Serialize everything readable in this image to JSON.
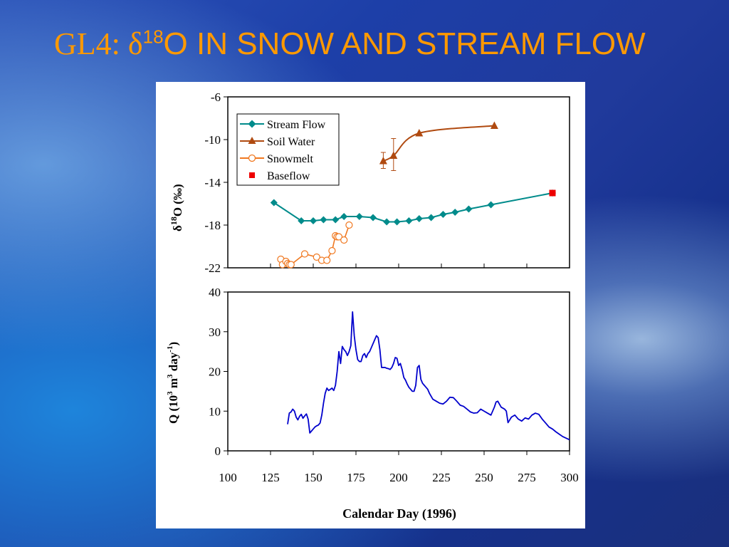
{
  "slide": {
    "title_prefix": "GL4: δ",
    "title_sup": "18",
    "title_suffix": "O IN SNOW AND STREAM FLOW"
  },
  "colors": {
    "title": "#ff9900",
    "stream_flow": "#008b8b",
    "soil_water": "#b04a10",
    "snowmelt": "#f07820",
    "baseflow": "#ee0000",
    "discharge": "#0000cc"
  },
  "chart_data": [
    {
      "type": "scatter",
      "ylabel_delta": "δ",
      "ylabel_sup": "18",
      "ylabel_rest": "O (‰)",
      "xlim": [
        100,
        300
      ],
      "ylim": [
        -22,
        -6
      ],
      "y_ticks": [
        "-6",
        "-10",
        "-14",
        "-18",
        "-22"
      ],
      "legend_position": "top-left",
      "series": [
        {
          "name": "Stream Flow",
          "x": [
            127,
            143,
            150,
            156,
            163,
            168,
            177,
            185,
            193,
            199,
            206,
            212,
            219,
            226,
            233,
            241,
            254,
            290
          ],
          "y": [
            -15.9,
            -17.6,
            -17.6,
            -17.5,
            -17.5,
            -17.2,
            -17.2,
            -17.3,
            -17.7,
            -17.7,
            -17.6,
            -17.4,
            -17.3,
            -17.0,
            -16.8,
            -16.5,
            -16.1,
            -15.0
          ]
        },
        {
          "name": "Soil Water",
          "x": [
            191,
            197,
            212,
            256
          ],
          "y": [
            -12.0,
            -11.5,
            -9.4,
            -8.7
          ],
          "error_low": [
            -12.7,
            -12.9,
            null,
            null
          ],
          "error_high": [
            -11.2,
            -9.9,
            null,
            null
          ]
        },
        {
          "name": "Snowmelt",
          "x": [
            131,
            132,
            134,
            135,
            136,
            137,
            145,
            152,
            155,
            158,
            161,
            163,
            164,
            165,
            168,
            171
          ],
          "y": [
            -21.2,
            -21.7,
            -21.4,
            -21.6,
            -21.7,
            -21.7,
            -20.7,
            -21.0,
            -21.3,
            -21.3,
            -20.4,
            -19.0,
            -19.1,
            -19.1,
            -19.4,
            -18.0
          ]
        },
        {
          "name": "Baseflow",
          "x": [
            290
          ],
          "y": [
            -15.0
          ]
        }
      ]
    },
    {
      "type": "line",
      "ylabel_main": "Q (10",
      "ylabel_sup1": "3",
      "ylabel_mid": " m",
      "ylabel_sup2": "3",
      "ylabel_mid2": " day",
      "ylabel_sup3": "-1",
      "ylabel_end": ")",
      "xlabel": "Calendar Day (1996)",
      "xlim": [
        100,
        300
      ],
      "ylim": [
        0,
        40
      ],
      "x_ticks": [
        "100",
        "125",
        "150",
        "175",
        "200",
        "225",
        "250",
        "275",
        "300"
      ],
      "y_ticks": [
        "0",
        "10",
        "20",
        "30",
        "40"
      ],
      "series": [
        {
          "name": "Q",
          "x": [
            135,
            136,
            137,
            138,
            139,
            140,
            141,
            142,
            143,
            144,
            145,
            146,
            147,
            148,
            149,
            150,
            151,
            152,
            153,
            154,
            155,
            156,
            157,
            158,
            159,
            160,
            161,
            162,
            163,
            164,
            165,
            166,
            167,
            168,
            169,
            170,
            171,
            172,
            173,
            174,
            175,
            176,
            177,
            178,
            179,
            180,
            181,
            182,
            183,
            184,
            185,
            186,
            187,
            188,
            189,
            190,
            191,
            192,
            193,
            194,
            195,
            196,
            197,
            198,
            199,
            200,
            201,
            202,
            203,
            204,
            205,
            206,
            207,
            208,
            209,
            210,
            211,
            212,
            213,
            214,
            215,
            216,
            217,
            218,
            220,
            222,
            224,
            226,
            228,
            230,
            232,
            234,
            236,
            238,
            240,
            242,
            244,
            246,
            248,
            250,
            252,
            254,
            256,
            257,
            258,
            260,
            262,
            263,
            264,
            266,
            268,
            270,
            272,
            274,
            276,
            278,
            280,
            282,
            284,
            286,
            288,
            290,
            292,
            294,
            296,
            298,
            300
          ],
          "y": [
            6.7,
            9.5,
            9.8,
            10.5,
            10.0,
            8.5,
            7.8,
            8.7,
            9.2,
            8.2,
            8.8,
            9.3,
            8.0,
            4.5,
            5.0,
            5.5,
            6.0,
            6.3,
            6.5,
            7.0,
            9.0,
            12.0,
            14.5,
            15.8,
            15.2,
            15.5,
            15.8,
            15.2,
            16.5,
            20.0,
            25.0,
            22.0,
            26.3,
            25.5,
            25.0,
            24.0,
            25.0,
            26.5,
            35.0,
            29.0,
            25.5,
            23.0,
            22.5,
            22.5,
            24.0,
            24.5,
            23.5,
            24.5,
            25.0,
            26.0,
            27.0,
            28.0,
            29.0,
            28.5,
            25.5,
            21.0,
            21.0,
            21.0,
            20.8,
            20.7,
            20.5,
            21.0,
            22.0,
            23.5,
            23.3,
            21.5,
            22.0,
            20.5,
            18.5,
            17.8,
            16.8,
            16.0,
            15.5,
            15.0,
            15.0,
            16.5,
            21.0,
            21.5,
            18.0,
            17.0,
            16.5,
            16.0,
            15.5,
            14.5,
            13.0,
            12.5,
            12.0,
            11.8,
            12.5,
            13.5,
            13.4,
            12.5,
            11.5,
            11.2,
            10.5,
            9.8,
            9.5,
            9.6,
            10.5,
            10.0,
            9.5,
            9.0,
            11.0,
            12.3,
            12.5,
            11.0,
            10.5,
            10.0,
            7.1,
            8.5,
            9.0,
            8.0,
            7.5,
            8.3,
            8.0,
            9.0,
            9.5,
            9.2,
            8.0,
            7.0,
            6.0,
            5.5,
            4.8,
            4.2,
            3.6,
            3.2,
            2.8
          ]
        }
      ]
    }
  ]
}
